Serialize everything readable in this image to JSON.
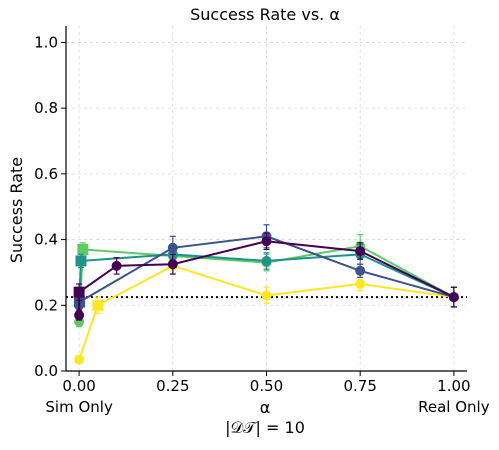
{
  "chart_data": {
    "type": "line",
    "title": "Success Rate vs. α",
    "ylabel": "Success Rate",
    "xlabel": "α",
    "xlabel_sub": "|𝒟𝒯| = 10",
    "x_ticks": [
      {
        "value": 0.0,
        "label": "0.00",
        "sublabel": "Sim Only"
      },
      {
        "value": 0.25,
        "label": "0.25",
        "sublabel": ""
      },
      {
        "value": 0.5,
        "label": "0.50",
        "sublabel": ""
      },
      {
        "value": 0.75,
        "label": "0.75",
        "sublabel": ""
      },
      {
        "value": 1.0,
        "label": "1.00",
        "sublabel": "Real Only"
      }
    ],
    "y_ticks": [
      0.0,
      0.2,
      0.4,
      0.6,
      0.8,
      1.0
    ],
    "xlim": [
      -0.035,
      1.035
    ],
    "ylim": [
      0.0,
      1.05
    ],
    "grid": true,
    "baseline": {
      "y": 0.225,
      "style": "dotted",
      "color": "#000000"
    },
    "series": [
      {
        "color": "#fde725",
        "marker_outer": "circle",
        "marker_inner": "square",
        "x": [
          0.0,
          0.05,
          0.25,
          0.5,
          0.75,
          1.0
        ],
        "y": [
          0.035,
          0.2,
          0.32,
          0.23,
          0.265,
          0.225
        ],
        "err": [
          0.01,
          0.025,
          0.025,
          0.025,
          0.02,
          0.03
        ]
      },
      {
        "color": "#5ec962",
        "marker_outer": "circle",
        "marker_inner": "square",
        "x": [
          0.0,
          0.01,
          0.25,
          0.5,
          0.75,
          1.0
        ],
        "y": [
          0.15,
          0.37,
          0.35,
          0.33,
          0.38,
          0.225
        ],
        "err": [
          0.015,
          0.02,
          0.02,
          0.025,
          0.035,
          0.03
        ]
      },
      {
        "color": "#21918c",
        "marker_outer": "circle",
        "marker_inner": "square",
        "x": [
          0.0,
          0.005,
          0.25,
          0.5,
          0.75,
          1.0
        ],
        "y": [
          0.21,
          0.335,
          0.355,
          0.335,
          0.355,
          0.225
        ],
        "err": [
          0.02,
          0.02,
          0.02,
          0.025,
          0.03,
          0.03
        ]
      },
      {
        "color": "#3b528b",
        "marker_outer": "circle",
        "marker_inner": "square",
        "x": [
          0.0,
          0.001,
          0.25,
          0.5,
          0.75,
          1.0
        ],
        "y": [
          0.2,
          0.21,
          0.375,
          0.41,
          0.305,
          0.225
        ],
        "err": [
          0.02,
          0.02,
          0.035,
          0.035,
          0.02,
          0.03
        ]
      },
      {
        "color": "#440154",
        "marker_outer": "circle",
        "marker_inner": "square",
        "x": [
          0.0,
          0.0,
          0.1,
          0.25,
          0.5,
          0.75,
          1.0
        ],
        "y": [
          0.17,
          0.24,
          0.32,
          0.325,
          0.395,
          0.365,
          0.225
        ],
        "err": [
          0.015,
          0.025,
          0.025,
          0.03,
          0.025,
          0.025,
          0.03
        ]
      }
    ]
  }
}
